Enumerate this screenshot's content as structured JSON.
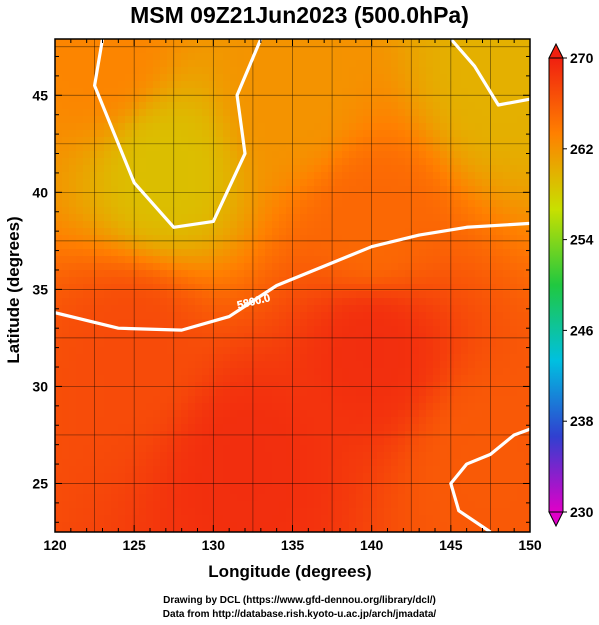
{
  "figure": {
    "title": "MSM 09Z21Jun2023 (500.0hPa)",
    "xlabel": "Longitude (degrees)",
    "ylabel": "Latitude  (degrees)",
    "contour_label": "5800.0"
  },
  "axes": {
    "lon_range": [
      120,
      150
    ],
    "lat_range": [
      22.5,
      47.9
    ],
    "lon_ticks": [
      120,
      125,
      130,
      135,
      140,
      145,
      150
    ],
    "lon_tick_labels": [
      "120",
      "125",
      "130",
      "135",
      "140",
      "145",
      "150"
    ],
    "lat_ticks": [
      25,
      30,
      35,
      40,
      45
    ],
    "lat_tick_labels": [
      "25",
      "30",
      "35",
      "40",
      "45"
    ],
    "grid": true
  },
  "colorbar": {
    "min": 230,
    "max": 270,
    "tick_values": [
      230,
      238,
      246,
      254,
      262,
      270
    ],
    "tick_labels": [
      "230",
      "238",
      "246",
      "254",
      "262",
      "270"
    ],
    "colors": [
      "#e000c8",
      "#3040d0",
      "#00c0e0",
      "#20c840",
      "#c8e000",
      "#ff8000",
      "#f02010"
    ]
  },
  "credits": {
    "line1": "Drawing by DCL (https://www.gfd-dennou.org/library/dcl/)",
    "line2": "Data from http://database.rish.kyoto-u.ac.jp/arch/jmadata/"
  },
  "chart_data": {
    "type": "heatmap",
    "title": "MSM 09Z21Jun2023 (500.0hPa)",
    "xlabel": "Longitude (degrees)",
    "ylabel": "Latitude  (degrees)",
    "xlim": [
      120,
      150
    ],
    "ylim": [
      22.5,
      47.9
    ],
    "colorbar_range": [
      230,
      270
    ],
    "field_samples": [
      {
        "lon": 123,
        "lat": 47,
        "temp": 263
      },
      {
        "lon": 127,
        "lat": 41,
        "temp": 259
      },
      {
        "lon": 135,
        "lat": 45,
        "temp": 262
      },
      {
        "lon": 140,
        "lat": 38,
        "temp": 265
      },
      {
        "lon": 148,
        "lat": 46,
        "temp": 260
      },
      {
        "lon": 125,
        "lat": 32,
        "temp": 267
      },
      {
        "lon": 140,
        "lat": 32,
        "temp": 269
      },
      {
        "lon": 132,
        "lat": 26,
        "temp": 269
      },
      {
        "lon": 147,
        "lat": 26,
        "temp": 266
      }
    ],
    "contours": [
      {
        "label": "5800.0",
        "points": [
          [
            120,
            33.8
          ],
          [
            124,
            33.0
          ],
          [
            128,
            32.9
          ],
          [
            131,
            33.6
          ],
          [
            134,
            35.2
          ],
          [
            137,
            36.2
          ],
          [
            140,
            37.2
          ],
          [
            143,
            37.8
          ],
          [
            146,
            38.2
          ],
          [
            150,
            38.4
          ]
        ]
      },
      {
        "label": "",
        "points": [
          [
            123,
            47.9
          ],
          [
            122.5,
            45.5
          ],
          [
            123.5,
            43.5
          ],
          [
            125,
            40.5
          ],
          [
            127.5,
            38.2
          ],
          [
            130,
            38.5
          ],
          [
            132,
            42
          ],
          [
            131.5,
            45
          ],
          [
            133,
            47.9
          ]
        ]
      },
      {
        "label": "",
        "points": [
          [
            145,
            47.9
          ],
          [
            146.5,
            46.5
          ],
          [
            148,
            44.5
          ],
          [
            150,
            44.8
          ]
        ]
      },
      {
        "label": "",
        "points": [
          [
            147.5,
            22.5
          ],
          [
            145.5,
            23.6
          ],
          [
            145,
            25
          ],
          [
            146,
            26
          ],
          [
            147.5,
            26.5
          ],
          [
            149,
            27.5
          ],
          [
            150,
            27.8
          ]
        ]
      }
    ]
  }
}
